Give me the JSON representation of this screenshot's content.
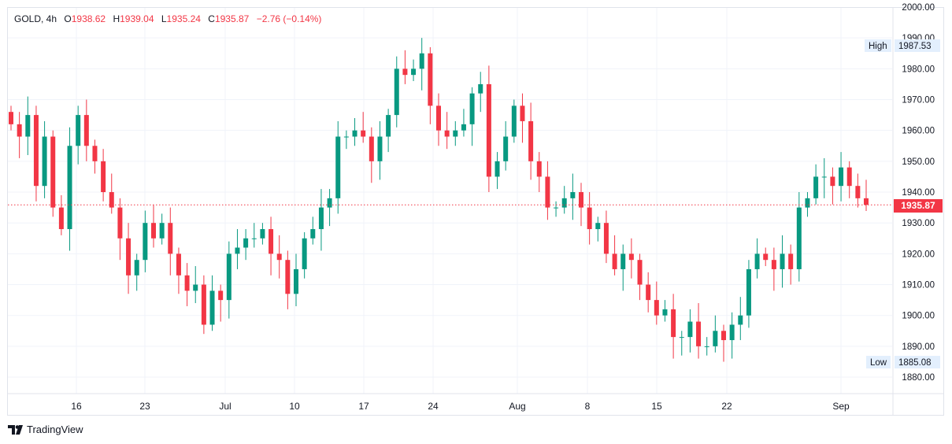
{
  "legend": {
    "symbol": "GOLD, 4h",
    "o_label": "O",
    "o": "1938.62",
    "h_label": "H",
    "h": "1939.04",
    "l_label": "L",
    "l": "1935.24",
    "c_label": "C",
    "c": "1935.87",
    "change": "−2.76 (−0.14%)"
  },
  "markers": {
    "high_label": "High",
    "high_value": "1987.53",
    "low_label": "Low",
    "low_value": "1885.08",
    "last_price": "1935.87"
  },
  "brand": "TradingView",
  "colors": {
    "up": "#089981",
    "down": "#f23645",
    "grid": "#f0f3fa"
  },
  "chart_data": {
    "type": "candlestick",
    "title": "GOLD, 4h",
    "ylim": [
      1877,
      2000
    ],
    "y_ticks": [
      "2000.00",
      "1990.00",
      "1980.00",
      "1970.00",
      "1960.00",
      "1950.00",
      "1940.00",
      "1930.00",
      "1920.00",
      "1910.00",
      "1900.00",
      "1890.00",
      "1880.00"
    ],
    "x_ticks": [
      "16",
      "23",
      "Jul",
      "10",
      "17",
      "24",
      "Aug",
      "8",
      "15",
      "22",
      "Sep"
    ],
    "close": [
      1962,
      1958,
      1965,
      1942,
      1958,
      1935,
      1928,
      1955,
      1965,
      1955,
      1950,
      1940,
      1935,
      1925,
      1913,
      1918,
      1930,
      1925,
      1930,
      1920,
      1913,
      1908,
      1910,
      1897,
      1908,
      1905,
      1920,
      1922,
      1925,
      1925,
      1928,
      1920,
      1918,
      1907,
      1915,
      1925,
      1928,
      1935,
      1938,
      1958,
      1958,
      1960,
      1958,
      1950,
      1958,
      1965,
      1980,
      1978,
      1980,
      1985,
      1968,
      1960,
      1958,
      1960,
      1962,
      1972,
      1975,
      1945,
      1950,
      1958,
      1968,
      1963,
      1950,
      1945,
      1935,
      1935,
      1938,
      1940,
      1935,
      1928,
      1930,
      1920,
      1915,
      1920,
      1918,
      1910,
      1905,
      1900,
      1902,
      1893,
      1893,
      1898,
      1890,
      1890,
      1895,
      1892,
      1897,
      1900,
      1915,
      1920,
      1918,
      1915,
      1920,
      1915,
      1935,
      1938,
      1945,
      1945,
      1942,
      1948,
      1942,
      1938,
      1935.87
    ],
    "first_open": 1966
  }
}
